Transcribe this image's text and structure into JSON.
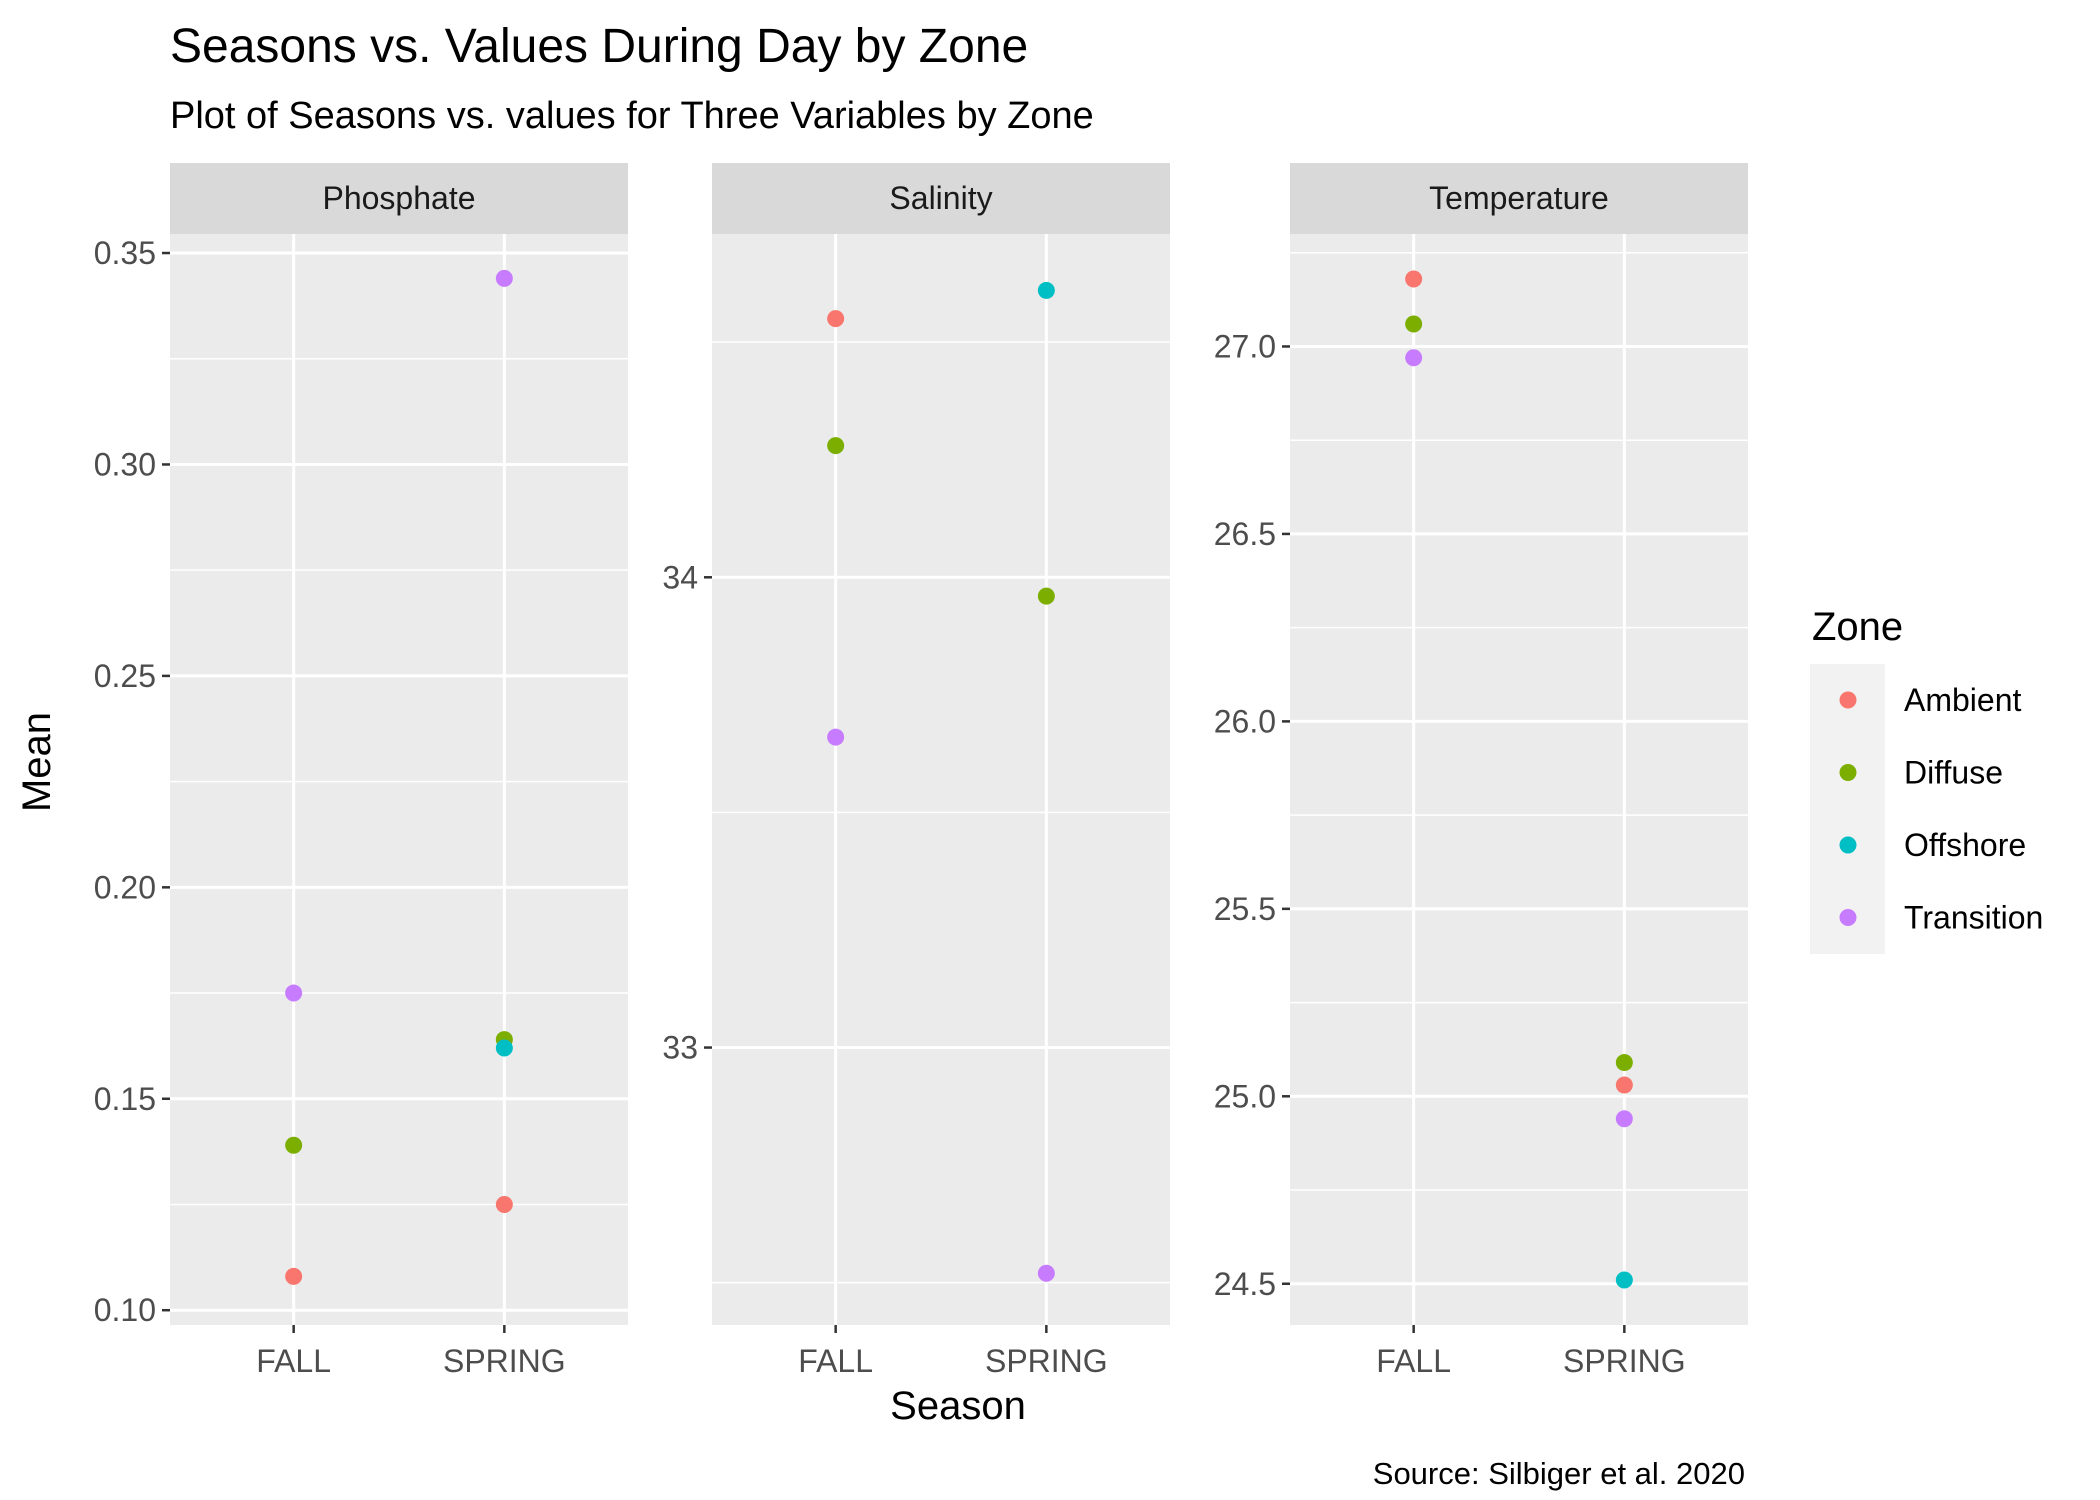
{
  "chart_data": {
    "type": "scatter",
    "title": "Seasons vs. Values During Day by Zone",
    "subtitle": "Plot of Seasons vs. values for Three Variables by Zone",
    "caption": "Source: Silbiger et al. 2020",
    "xlabel": "Season",
    "ylabel": "Mean",
    "categories": [
      "FALL",
      "SPRING"
    ],
    "legend": {
      "title": "Zone",
      "position": "right"
    },
    "grid": true,
    "zones": [
      {
        "name": "Ambient",
        "color": "#F8766D"
      },
      {
        "name": "Diffuse",
        "color": "#7CAE00"
      },
      {
        "name": "Offshore",
        "color": "#00BFC4"
      },
      {
        "name": "Transition",
        "color": "#C77CFF"
      }
    ],
    "panels": [
      {
        "name": "Phosphate",
        "ylim": [
          0.0965,
          0.3545
        ],
        "ticks": [
          0.1,
          0.15,
          0.2,
          0.25,
          0.3,
          0.35
        ],
        "tick_labels": [
          "0.10",
          "0.15",
          "0.20",
          "0.25",
          "0.30",
          "0.35"
        ],
        "minor_ticks": [
          0.125,
          0.175,
          0.225,
          0.275,
          0.325
        ],
        "points": [
          {
            "zone": "Ambient",
            "season": "FALL",
            "value": 0.108
          },
          {
            "zone": "Diffuse",
            "season": "FALL",
            "value": 0.139
          },
          {
            "zone": "Transition",
            "season": "FALL",
            "value": 0.175
          },
          {
            "zone": "Ambient",
            "season": "SPRING",
            "value": 0.125
          },
          {
            "zone": "Diffuse",
            "season": "SPRING",
            "value": 0.164
          },
          {
            "zone": "Offshore",
            "season": "SPRING",
            "value": 0.162
          },
          {
            "zone": "Transition",
            "season": "SPRING",
            "value": 0.344
          }
        ]
      },
      {
        "name": "Salinity",
        "ylim": [
          32.41,
          34.73
        ],
        "ticks": [
          33,
          34
        ],
        "tick_labels": [
          "33",
          "34"
        ],
        "minor_ticks": [
          32.5,
          33.5,
          34.5
        ],
        "points": [
          {
            "zone": "Ambient",
            "season": "FALL",
            "value": 34.55
          },
          {
            "zone": "Diffuse",
            "season": "FALL",
            "value": 34.28
          },
          {
            "zone": "Transition",
            "season": "FALL",
            "value": 33.66
          },
          {
            "zone": "Offshore",
            "season": "SPRING",
            "value": 34.61
          },
          {
            "zone": "Diffuse",
            "season": "SPRING",
            "value": 33.96
          },
          {
            "zone": "Transition",
            "season": "SPRING",
            "value": 32.52
          }
        ]
      },
      {
        "name": "Temperature",
        "ylim": [
          24.39,
          27.3
        ],
        "ticks": [
          24.5,
          25.0,
          25.5,
          26.0,
          26.5,
          27.0
        ],
        "tick_labels": [
          "24.5",
          "25.0",
          "25.5",
          "26.0",
          "26.5",
          "27.0"
        ],
        "minor_ticks": [
          24.75,
          25.25,
          25.75,
          26.25,
          26.75,
          27.25
        ],
        "points": [
          {
            "zone": "Ambient",
            "season": "FALL",
            "value": 27.18
          },
          {
            "zone": "Diffuse",
            "season": "FALL",
            "value": 27.06
          },
          {
            "zone": "Transition",
            "season": "FALL",
            "value": 26.97
          },
          {
            "zone": "Diffuse",
            "season": "SPRING",
            "value": 25.09
          },
          {
            "zone": "Ambient",
            "season": "SPRING",
            "value": 25.03
          },
          {
            "zone": "Transition",
            "season": "SPRING",
            "value": 24.94
          },
          {
            "zone": "Offshore",
            "season": "SPRING",
            "value": 24.51
          }
        ]
      }
    ]
  }
}
